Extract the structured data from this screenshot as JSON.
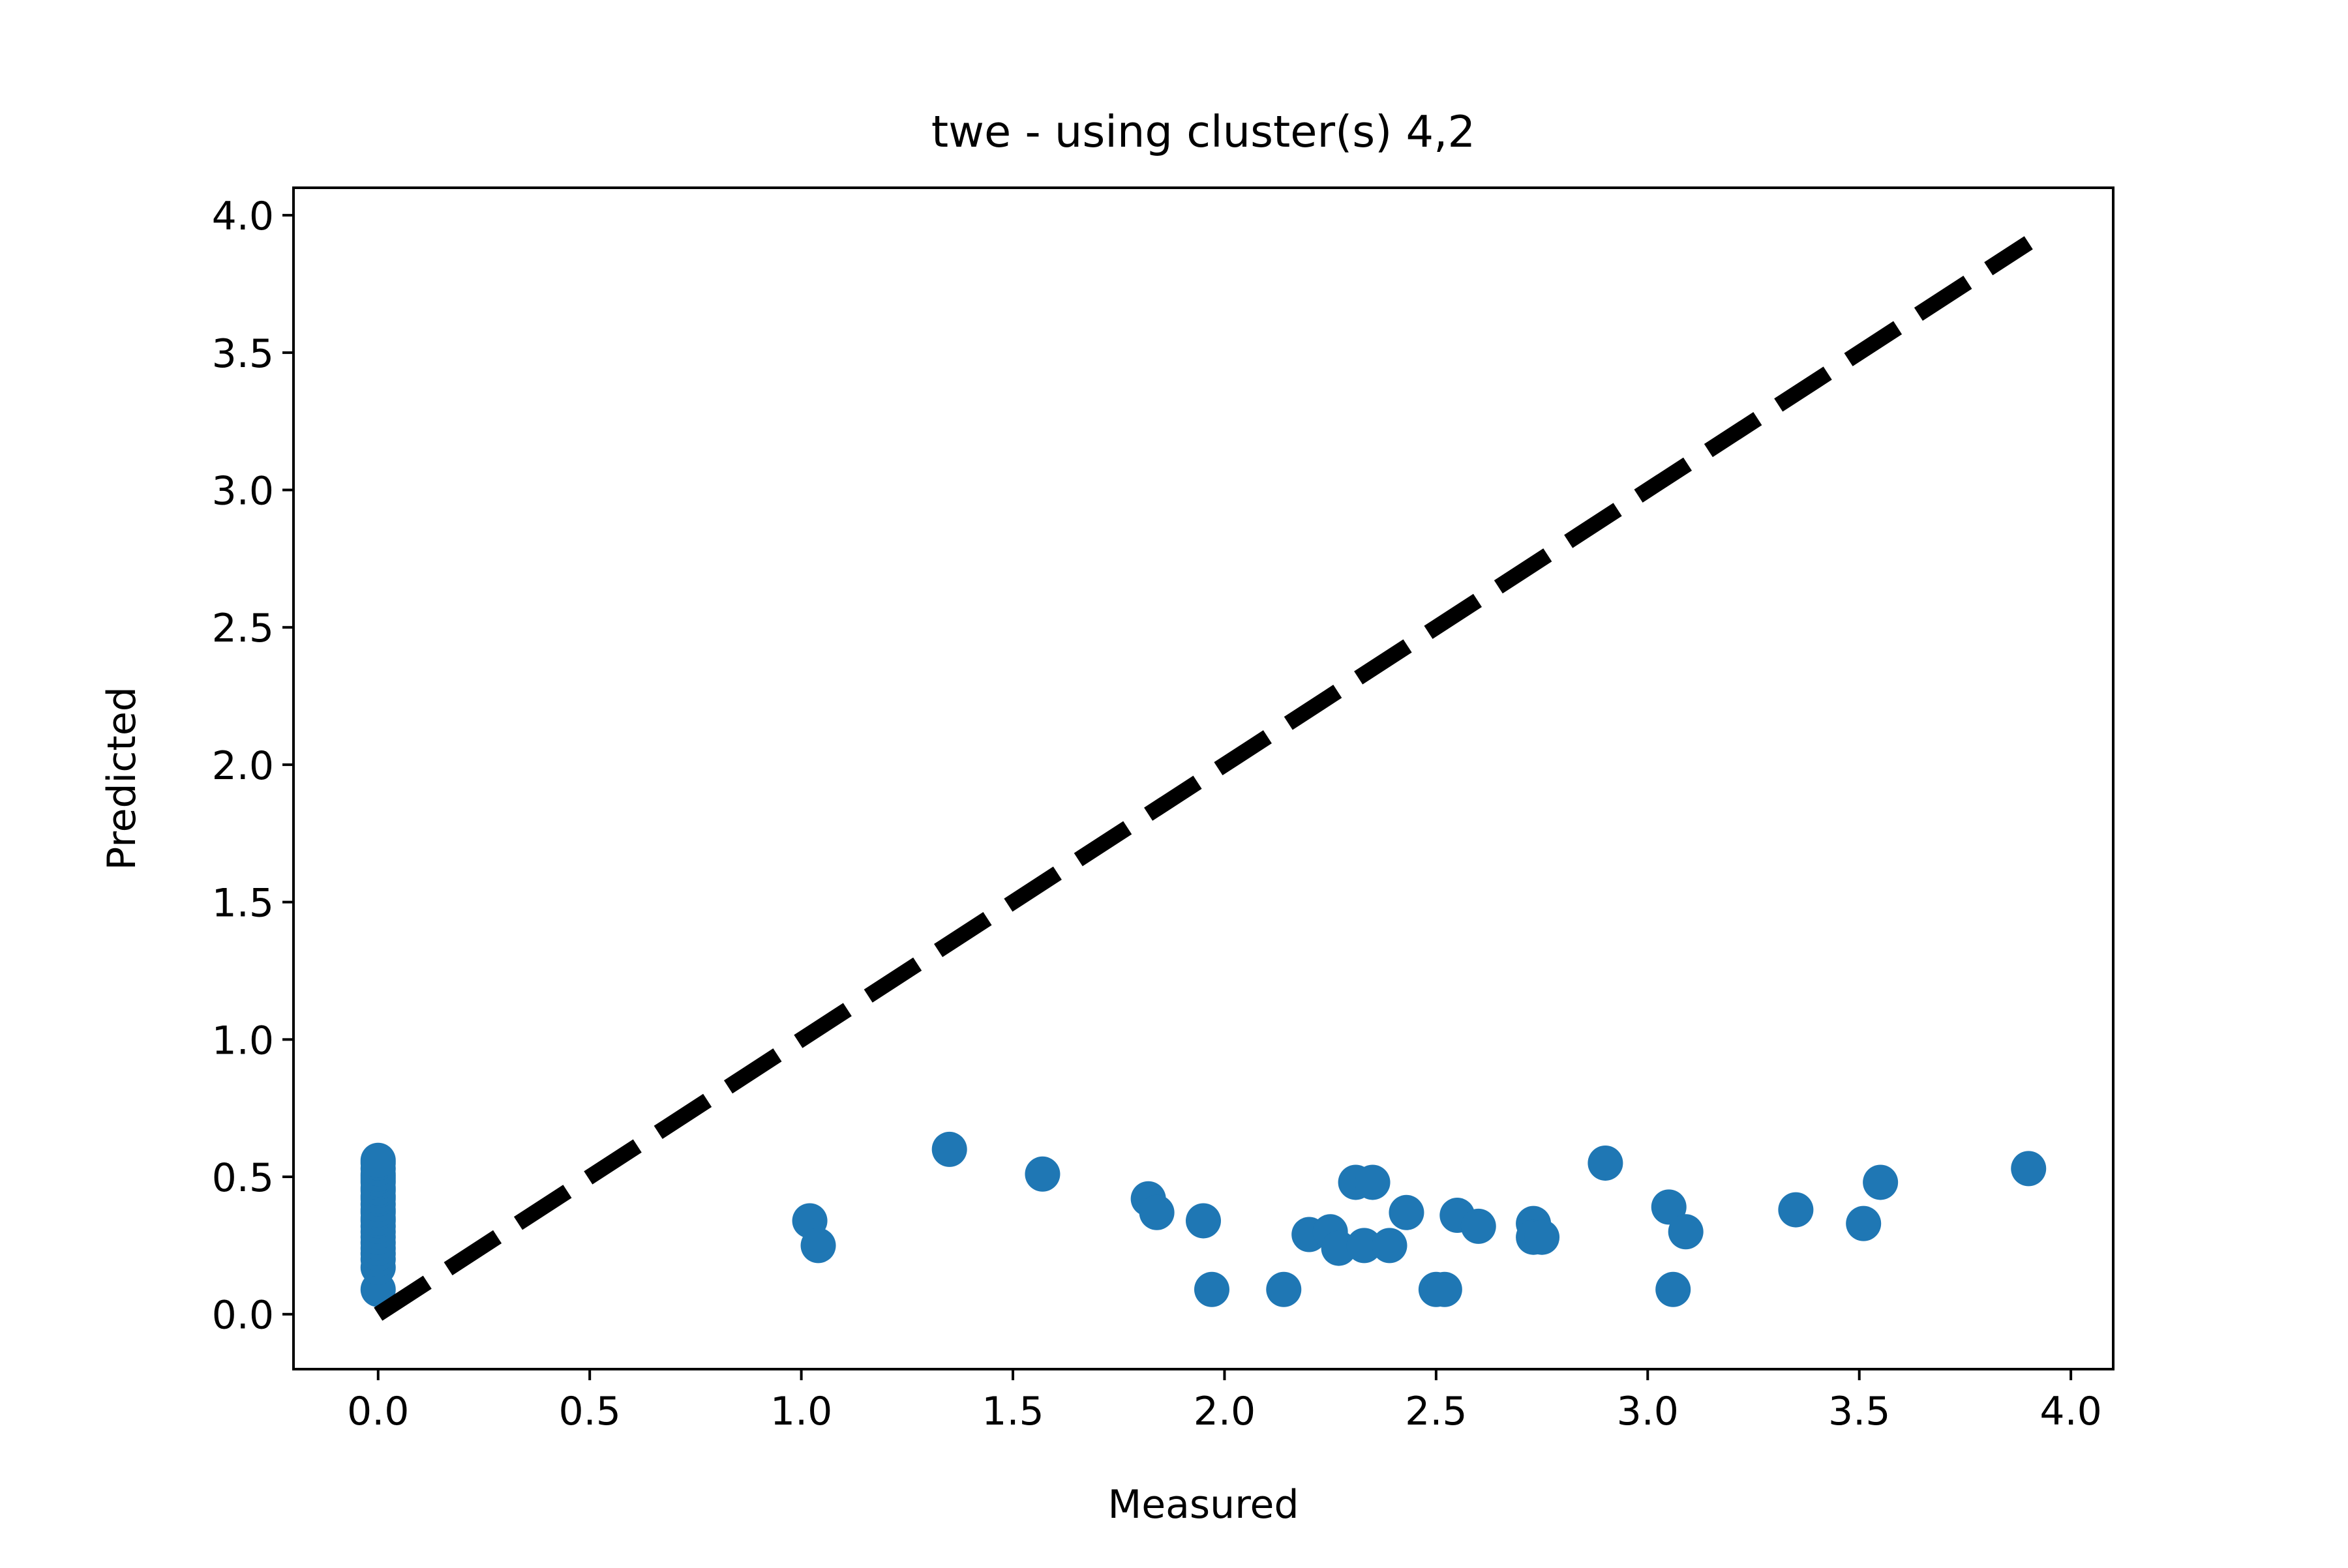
{
  "chart_data": {
    "type": "scatter",
    "title": "twe - using cluster(s) 4,2",
    "xlabel": "Measured",
    "ylabel": "Predicted",
    "xlim": [
      -0.2,
      4.1
    ],
    "ylim": [
      -0.2,
      4.1
    ],
    "x_ticks": [
      0.0,
      0.5,
      1.0,
      1.5,
      2.0,
      2.5,
      3.0,
      3.5,
      4.0
    ],
    "x_tick_labels": [
      "0.0",
      "0.5",
      "1.0",
      "1.5",
      "2.0",
      "2.5",
      "3.0",
      "3.5",
      "4.0"
    ],
    "y_ticks": [
      0.0,
      0.5,
      1.0,
      1.5,
      2.0,
      2.5,
      3.0,
      3.5,
      4.0
    ],
    "y_tick_labels": [
      "0.0",
      "0.5",
      "1.0",
      "1.5",
      "2.0",
      "2.5",
      "3.0",
      "3.5",
      "4.0"
    ],
    "grid": false,
    "points": {
      "color": "#1f77b4",
      "x": [
        0,
        0,
        0,
        0,
        0,
        0,
        0,
        0,
        0,
        0,
        0,
        0,
        0,
        0,
        0,
        0,
        0,
        0,
        0,
        0,
        0,
        0,
        0,
        0,
        0,
        1.02,
        1.04,
        1.35,
        1.57,
        1.82,
        1.84,
        1.95,
        1.97,
        2.14,
        2.2,
        2.25,
        2.27,
        2.31,
        2.33,
        2.35,
        2.39,
        2.43,
        2.5,
        2.52,
        2.55,
        2.6,
        2.73,
        2.73,
        2.75,
        2.9,
        3.05,
        3.06,
        3.09,
        3.35,
        3.51,
        3.55,
        3.9
      ],
      "y": [
        0.09,
        0.17,
        0.2,
        0.22,
        0.24,
        0.26,
        0.28,
        0.3,
        0.32,
        0.34,
        0.35,
        0.37,
        0.38,
        0.4,
        0.42,
        0.43,
        0.45,
        0.46,
        0.48,
        0.49,
        0.5,
        0.51,
        0.53,
        0.55,
        0.56,
        0.34,
        0.25,
        0.6,
        0.51,
        0.42,
        0.37,
        0.34,
        0.09,
        0.09,
        0.29,
        0.3,
        0.24,
        0.48,
        0.25,
        0.48,
        0.25,
        0.37,
        0.09,
        0.09,
        0.36,
        0.32,
        0.33,
        0.28,
        0.28,
        0.55,
        0.39,
        0.09,
        0.3,
        0.38,
        0.33,
        0.48,
        0.53
      ]
    },
    "reference_line": {
      "x": [
        0,
        3.9
      ],
      "y": [
        0,
        3.9
      ],
      "style": "dashed",
      "color": "#000000"
    }
  }
}
